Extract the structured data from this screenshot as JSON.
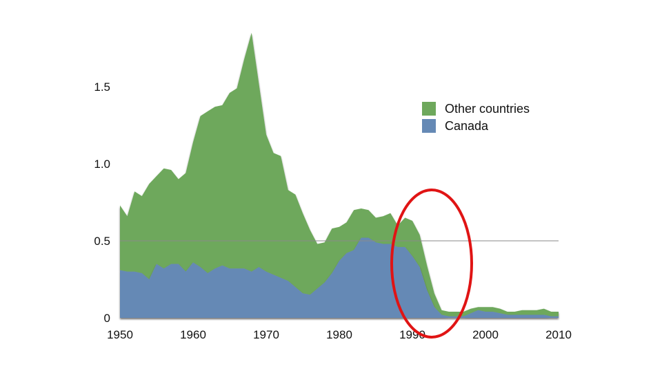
{
  "chart_data": {
    "type": "area",
    "stacked": true,
    "title": "",
    "xlabel": "",
    "ylabel": "",
    "xlim": [
      1950,
      2010
    ],
    "ylim": [
      0,
      1.9
    ],
    "x_ticks": [
      1950,
      1960,
      1970,
      1980,
      1990,
      2000,
      2010
    ],
    "x_tick_labels": [
      "1950",
      "1960",
      "1970",
      "1980",
      "1990",
      "2000",
      "2010"
    ],
    "y_ticks": [
      0,
      0.5,
      1.0,
      1.5
    ],
    "y_tick_labels": [
      "0",
      "0.5",
      "1.0",
      "1.5"
    ],
    "reference_line": {
      "y": 0.5
    },
    "legend": {
      "position": "top-right",
      "entries": [
        "Other countries",
        "Canada"
      ]
    },
    "x": [
      1950,
      1951,
      1952,
      1953,
      1954,
      1955,
      1956,
      1957,
      1958,
      1959,
      1960,
      1961,
      1962,
      1963,
      1964,
      1965,
      1966,
      1967,
      1968,
      1969,
      1970,
      1971,
      1972,
      1973,
      1974,
      1975,
      1976,
      1977,
      1978,
      1979,
      1980,
      1981,
      1982,
      1983,
      1984,
      1985,
      1986,
      1987,
      1988,
      1989,
      1990,
      1991,
      1992,
      1993,
      1994,
      1995,
      1996,
      1997,
      1998,
      1999,
      2000,
      2001,
      2002,
      2003,
      2004,
      2005,
      2006,
      2007,
      2008,
      2009,
      2010
    ],
    "series": [
      {
        "name": "Canada",
        "color": "#6589b5",
        "values": [
          0.31,
          0.3,
          0.3,
          0.29,
          0.25,
          0.35,
          0.32,
          0.35,
          0.35,
          0.3,
          0.36,
          0.33,
          0.29,
          0.32,
          0.34,
          0.32,
          0.32,
          0.32,
          0.3,
          0.33,
          0.3,
          0.28,
          0.26,
          0.24,
          0.2,
          0.16,
          0.15,
          0.19,
          0.23,
          0.29,
          0.37,
          0.42,
          0.44,
          0.52,
          0.52,
          0.49,
          0.48,
          0.48,
          0.46,
          0.46,
          0.4,
          0.33,
          0.18,
          0.07,
          0.02,
          0.01,
          0.01,
          0.01,
          0.03,
          0.05,
          0.04,
          0.04,
          0.03,
          0.02,
          0.02,
          0.02,
          0.02,
          0.02,
          0.02,
          0.01,
          0.01
        ]
      },
      {
        "name": "Other countries",
        "color": "#6ea85c",
        "values": [
          0.42,
          0.36,
          0.52,
          0.5,
          0.62,
          0.57,
          0.65,
          0.61,
          0.55,
          0.64,
          0.78,
          0.98,
          1.05,
          1.05,
          1.04,
          1.14,
          1.17,
          1.36,
          1.55,
          1.19,
          0.89,
          0.79,
          0.79,
          0.59,
          0.6,
          0.52,
          0.42,
          0.29,
          0.26,
          0.29,
          0.22,
          0.2,
          0.26,
          0.19,
          0.18,
          0.16,
          0.18,
          0.2,
          0.14,
          0.19,
          0.23,
          0.21,
          0.16,
          0.09,
          0.03,
          0.03,
          0.03,
          0.03,
          0.03,
          0.02,
          0.03,
          0.03,
          0.03,
          0.02,
          0.02,
          0.03,
          0.03,
          0.03,
          0.04,
          0.03,
          0.03
        ]
      }
    ]
  },
  "annotation": {
    "type": "ellipse",
    "color": "#e01414"
  }
}
